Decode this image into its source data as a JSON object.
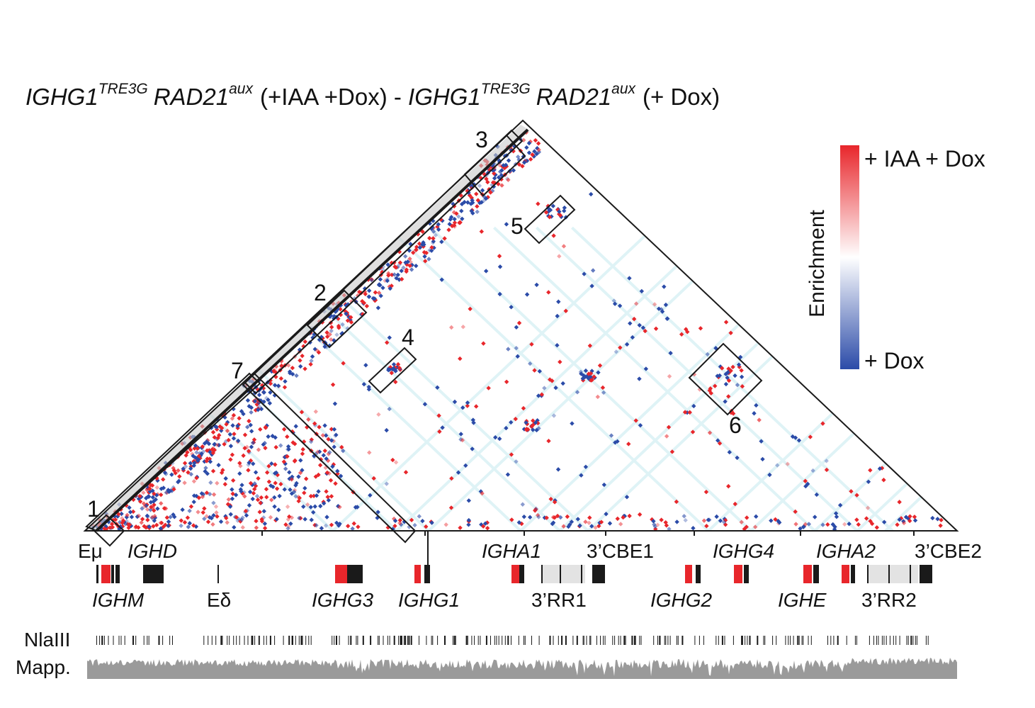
{
  "title": {
    "gene1": "IGHG1",
    "sup1": "TRE3G",
    "gene2": "RAD21",
    "sup2": "aux",
    "cond1": "(+IAA +Dox) - ",
    "gene3": "IGHG1",
    "sup3": "TRE3G",
    "gene4": "RAD21",
    "sup4": "aux",
    "cond2": "(+ Dox)"
  },
  "legend": {
    "top_label": "+ IAA + Dox",
    "bottom_label": "+ Dox",
    "axis_label": "Enrichment",
    "colors": {
      "high": "#e8262b",
      "mid": "#ffffff",
      "low": "#2b4ba8"
    }
  },
  "boxes": [
    {
      "id": "1",
      "label": "1"
    },
    {
      "id": "2",
      "label": "2"
    },
    {
      "id": "3",
      "label": "3"
    },
    {
      "id": "4",
      "label": "4"
    },
    {
      "id": "5",
      "label": "5"
    },
    {
      "id": "6",
      "label": "6"
    },
    {
      "id": "7",
      "label": "7"
    }
  ],
  "annotations": {
    "top_row": [
      {
        "id": "emu",
        "text": "Eμ",
        "italic": false
      },
      {
        "id": "ighd",
        "text": "IGHD",
        "italic": true
      },
      {
        "id": "igha1",
        "text": "IGHA1",
        "italic": true
      },
      {
        "id": "cbe1",
        "text": "3’CBE1",
        "italic": false
      },
      {
        "id": "ighg4",
        "text": "IGHG4",
        "italic": true
      },
      {
        "id": "igha2",
        "text": "IGHA2",
        "italic": true
      },
      {
        "id": "cbe2",
        "text": "3’CBE2",
        "italic": false
      }
    ],
    "bottom_row": [
      {
        "id": "ighm",
        "text": "IGHM",
        "italic": true
      },
      {
        "id": "edelta",
        "text": "Eδ",
        "italic": false
      },
      {
        "id": "ighg3",
        "text": "IGHG3",
        "italic": true
      },
      {
        "id": "ighg1",
        "text": "IGHG1",
        "italic": true
      },
      {
        "id": "rr1",
        "text": "3’RR1",
        "italic": false
      },
      {
        "id": "ighg2",
        "text": "IGHG2",
        "italic": true
      },
      {
        "id": "ighe",
        "text": "IGHE",
        "italic": true
      },
      {
        "id": "rr2",
        "text": "3’RR2",
        "italic": false
      }
    ]
  },
  "tracks": {
    "nlaiii_label": "NlaIII",
    "mapp_label": "Mapp."
  },
  "colors": {
    "red": "#e8262b",
    "blue": "#2b4ba8",
    "black": "#1a1a1a",
    "grey_track": "#9a9a9a",
    "rr_grey": "#e3e3e3",
    "stripe": "#dff3f6"
  }
}
